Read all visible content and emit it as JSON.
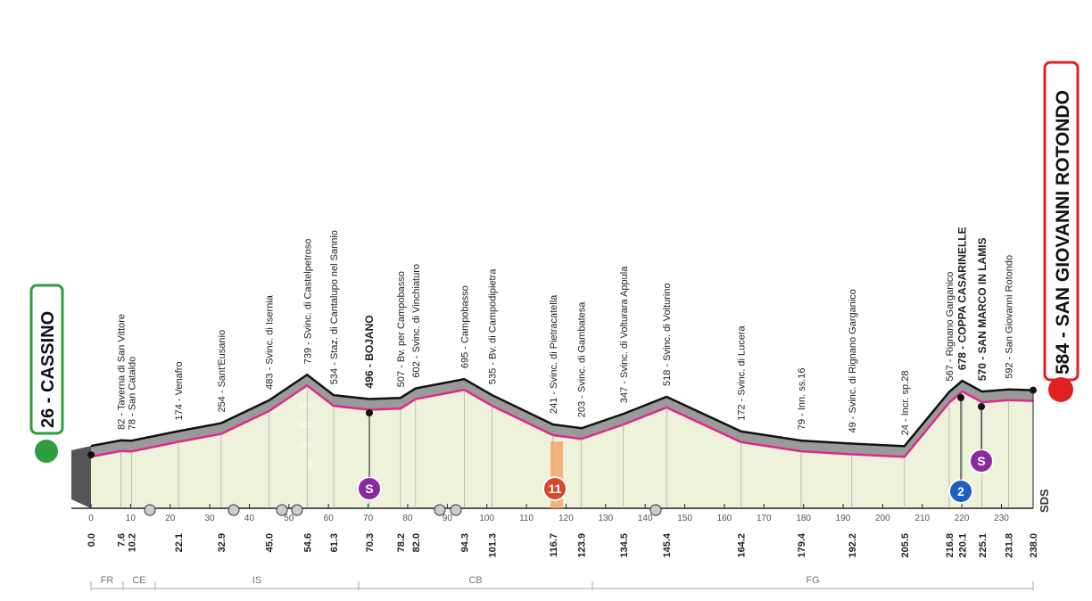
{
  "start": {
    "label": "26 - CASSINO",
    "km": "0.0"
  },
  "finish": {
    "label": "584 - SAN GIOVANNI ROTONDO",
    "km": "238.0"
  },
  "waypoints": [
    {
      "label": "82 - Taverna di San Vittore",
      "km": "7.6"
    },
    {
      "label": "78 - San Cataldo",
      "km": "10.2"
    },
    {
      "label": "174 - Venafro",
      "km": "22.1"
    },
    {
      "label": "254 - Sant'Eusanio",
      "km": "32.9"
    },
    {
      "label": "483 - Svinc. di Isernia",
      "km": "45.0"
    },
    {
      "label": "739 - Svinc. di Castelpetroso",
      "km": "54.6"
    },
    {
      "label": "534 - Staz. di Cantalupo nel Sannio",
      "km": "61.3"
    },
    {
      "label": "496 - BOJANO",
      "km": "70.3",
      "bold": true
    },
    {
      "label": "507 - Bv. per Campobasso",
      "km": "78.2"
    },
    {
      "label": "602 - Svinc. di Vinchiaturo",
      "km": "82.0"
    },
    {
      "label": "695 - Campobasso",
      "km": "94.3"
    },
    {
      "label": "535 - Bv. di Campodipietra",
      "km": "101.3"
    },
    {
      "label": "241 - Svinc. di Pietracatella",
      "km": "116.7"
    },
    {
      "label": "203 - Svinc. di Gambatesa",
      "km": "123.9"
    },
    {
      "label": "347 - Svinc. di Volturara Appula",
      "km": "134.5"
    },
    {
      "label": "518 - Svinc. di Volturino",
      "km": "145.4"
    },
    {
      "label": "172 - Svinc. di Lucera",
      "km": "164.2"
    },
    {
      "label": "79 - Inn. ss.16",
      "km": "179.4"
    },
    {
      "label": "49 - Svinc. di Rignano Garganico",
      "km": "192.2"
    },
    {
      "label": "24 - Incr. sp.28",
      "km": "205.5"
    },
    {
      "label": "567 - Rignano Garganico",
      "km": "216.8"
    },
    {
      "label": "678 - COPPA CASARINELLE",
      "km": "220.1",
      "bold": true
    },
    {
      "label": "570 - SAN MARCO IN LAMIS",
      "km": "225.1",
      "bold": true
    },
    {
      "label": "592 - San Giovanni Rotondo",
      "km": "231.8"
    }
  ],
  "km_ticks": [
    0,
    10,
    20,
    30,
    40,
    50,
    60,
    70,
    80,
    90,
    100,
    110,
    120,
    130,
    140,
    150,
    160,
    170,
    180,
    190,
    200,
    210,
    220,
    230
  ],
  "alt_ticks": [
    0,
    200,
    400,
    600
  ],
  "regions": [
    "FR",
    "CE",
    "IS",
    "CB",
    "FG"
  ],
  "markers": [
    "S",
    "11",
    "2",
    "S"
  ],
  "logo": "SDS"
}
